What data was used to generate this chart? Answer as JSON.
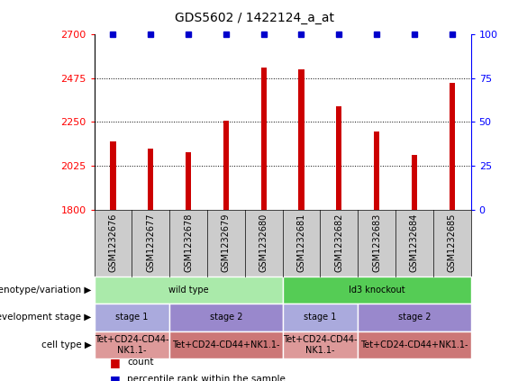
{
  "title": "GDS5602 / 1422124_a_at",
  "samples": [
    "GSM1232676",
    "GSM1232677",
    "GSM1232678",
    "GSM1232679",
    "GSM1232680",
    "GSM1232681",
    "GSM1232682",
    "GSM1232683",
    "GSM1232684",
    "GSM1232685"
  ],
  "bar_values": [
    2150,
    2115,
    2095,
    2255,
    2530,
    2520,
    2330,
    2200,
    2080,
    2450
  ],
  "percentile_values": [
    100,
    100,
    100,
    100,
    100,
    100,
    100,
    100,
    100,
    100
  ],
  "ylim_left": [
    1800,
    2700
  ],
  "ylim_right": [
    0,
    100
  ],
  "yticks_left": [
    1800,
    2025,
    2250,
    2475,
    2700
  ],
  "yticks_right": [
    0,
    25,
    50,
    75,
    100
  ],
  "bar_color": "#cc0000",
  "percentile_color": "#0000cc",
  "annotation_rows": [
    {
      "label": "genotype/variation",
      "groups": [
        {
          "text": "wild type",
          "start": 0,
          "end": 5,
          "color": "#aaeaaa"
        },
        {
          "text": "Id3 knockout",
          "start": 5,
          "end": 10,
          "color": "#55cc55"
        }
      ]
    },
    {
      "label": "development stage",
      "groups": [
        {
          "text": "stage 1",
          "start": 0,
          "end": 2,
          "color": "#aaaadd"
        },
        {
          "text": "stage 2",
          "start": 2,
          "end": 5,
          "color": "#9988cc"
        },
        {
          "text": "stage 1",
          "start": 5,
          "end": 7,
          "color": "#aaaadd"
        },
        {
          "text": "stage 2",
          "start": 7,
          "end": 10,
          "color": "#9988cc"
        }
      ]
    },
    {
      "label": "cell type",
      "groups": [
        {
          "text": "Tet+CD24-CD44-\nNK1.1-",
          "start": 0,
          "end": 2,
          "color": "#dd9999"
        },
        {
          "text": "Tet+CD24-CD44+NK1.1-",
          "start": 2,
          "end": 5,
          "color": "#cc7777"
        },
        {
          "text": "Tet+CD24-CD44-\nNK1.1-",
          "start": 5,
          "end": 7,
          "color": "#dd9999"
        },
        {
          "text": "Tet+CD24-CD44+NK1.1-",
          "start": 7,
          "end": 10,
          "color": "#cc7777"
        }
      ]
    }
  ],
  "legend_items": [
    {
      "color": "#cc0000",
      "label": "count"
    },
    {
      "color": "#0000cc",
      "label": "percentile rank within the sample"
    }
  ],
  "xtick_bg": "#cccccc",
  "bar_width": 0.15
}
